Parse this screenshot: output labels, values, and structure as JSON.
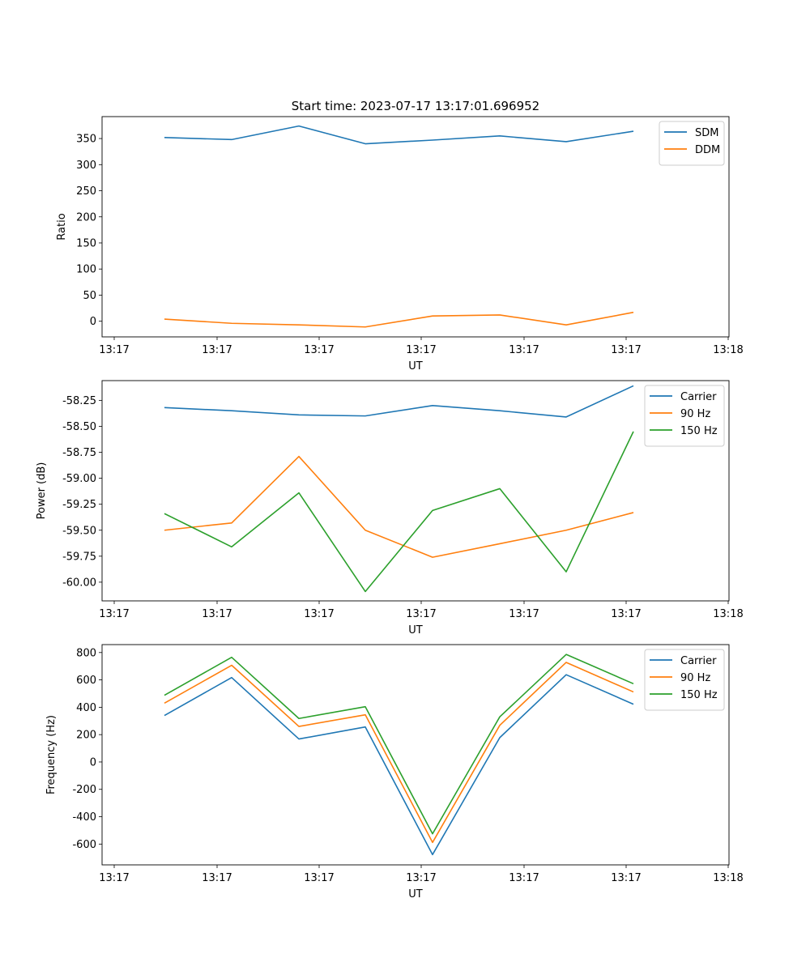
{
  "chart_data": [
    {
      "type": "line",
      "title": "Start time: 2023-07-17 13:17:01.696952",
      "xlabel": "UT",
      "ylabel": "Ratio",
      "xticks": [
        "13:17",
        "13:17",
        "13:17",
        "13:17",
        "13:17",
        "13:17",
        "13:18"
      ],
      "yticks": [
        0,
        50,
        100,
        150,
        200,
        250,
        300,
        350
      ],
      "ylim": [
        -30,
        392
      ],
      "legend_position": "top-right",
      "series": [
        {
          "name": "SDM",
          "color": "#1f77b4",
          "values": [
            352,
            348,
            374,
            340,
            347,
            355,
            344,
            364
          ]
        },
        {
          "name": "DDM",
          "color": "#ff7f0e",
          "values": [
            4,
            -4,
            -7,
            -11,
            10,
            12,
            -7,
            17
          ]
        }
      ]
    },
    {
      "type": "line",
      "title": "",
      "xlabel": "UT",
      "ylabel": "Power (dB)",
      "xticks": [
        "13:17",
        "13:17",
        "13:17",
        "13:17",
        "13:17",
        "13:17",
        "13:18"
      ],
      "yticks": [
        "-60.00",
        "-59.75",
        "-59.50",
        "-59.25",
        "-59.00",
        "-58.75",
        "-58.50",
        "-58.25"
      ],
      "ylim": [
        -60.18,
        -58.06
      ],
      "legend_position": "top-right",
      "series": [
        {
          "name": "Carrier",
          "color": "#1f77b4",
          "values": [
            -58.32,
            -58.35,
            -58.39,
            -58.4,
            -58.3,
            -58.35,
            -58.41,
            -58.11
          ]
        },
        {
          "name": "90 Hz",
          "color": "#ff7f0e",
          "values": [
            -59.5,
            -59.43,
            -58.79,
            -59.5,
            -59.76,
            -59.63,
            -59.5,
            -59.33
          ]
        },
        {
          "name": "150 Hz",
          "color": "#2ca02c",
          "values": [
            -59.34,
            -59.66,
            -59.14,
            -60.09,
            -59.31,
            -59.1,
            -59.9,
            -58.55
          ]
        }
      ]
    },
    {
      "type": "line",
      "title": "",
      "xlabel": "UT",
      "ylabel": "Frequency (Hz)",
      "xticks": [
        "13:17",
        "13:17",
        "13:17",
        "13:17",
        "13:17",
        "13:17",
        "13:18"
      ],
      "yticks": [
        -600,
        -400,
        -200,
        0,
        200,
        400,
        600,
        800
      ],
      "ylim": [
        -752,
        858
      ],
      "legend_position": "top-right",
      "series": [
        {
          "name": "Carrier",
          "color": "#1f77b4",
          "values": [
            340,
            617,
            168,
            256,
            -677,
            178,
            638,
            422
          ]
        },
        {
          "name": "90 Hz",
          "color": "#ff7f0e",
          "values": [
            430,
            707,
            260,
            345,
            -588,
            268,
            728,
            512
          ]
        },
        {
          "name": "150 Hz",
          "color": "#2ca02c",
          "values": [
            488,
            765,
            318,
            404,
            -525,
            330,
            786,
            572
          ]
        }
      ]
    }
  ]
}
